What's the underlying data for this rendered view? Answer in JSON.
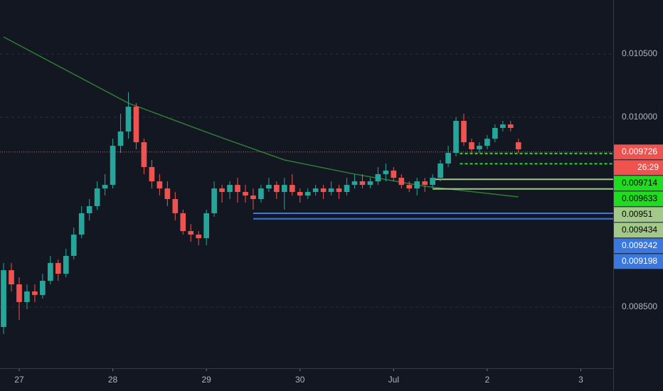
{
  "chart_data": {
    "type": "candlestick",
    "background": "#131722",
    "up_color": "#26a69a",
    "down_color": "#ef5350",
    "x": [
      -4,
      -2,
      0,
      2,
      4,
      6,
      8,
      10,
      12,
      14,
      16,
      18,
      20,
      22,
      24,
      26,
      28,
      30,
      32,
      34,
      36,
      38,
      40,
      42,
      44,
      46,
      48,
      50,
      52,
      54,
      56,
      58,
      60,
      62,
      64,
      66,
      68,
      70,
      72,
      74,
      76,
      78,
      80,
      82,
      84,
      86,
      88,
      90,
      92,
      94,
      96,
      98,
      100,
      102,
      104,
      106,
      108,
      110,
      112,
      114,
      116,
      118,
      120,
      122,
      124,
      126,
      128
    ],
    "open": [
      0.008343,
      0.008792,
      0.00868,
      0.00854,
      0.008624,
      0.008596,
      0.008708,
      0.008849,
      0.008764,
      0.008905,
      0.009073,
      0.009242,
      0.009298,
      0.009438,
      0.009466,
      0.009775,
      0.009888,
      0.010084,
      0.009803,
      0.009607,
      0.009494,
      0.009438,
      0.009354,
      0.009242,
      0.009101,
      0.009073,
      0.009045,
      0.009242,
      0.009438,
      0.00941,
      0.009466,
      0.00941,
      0.009382,
      0.009354,
      0.009438,
      0.009466,
      0.00941,
      0.009466,
      0.00941,
      0.009382,
      0.00941,
      0.009438,
      0.00941,
      0.009438,
      0.00941,
      0.009466,
      0.009494,
      0.009466,
      0.009494,
      0.009551,
      0.009579,
      0.009522,
      0.009466,
      0.009438,
      0.009494,
      0.009466,
      0.009522,
      0.009635,
      0.009719,
      0.009972,
      0.009803,
      0.009747,
      0.009775,
      0.009831,
      0.009916,
      0.009944,
      0.009803
    ],
    "high": [
      0.008849,
      0.008849,
      0.008736,
      0.00868,
      0.00868,
      0.008764,
      0.008905,
      0.008877,
      0.008961,
      0.009129,
      0.009298,
      0.009354,
      0.009494,
      0.009551,
      0.009831,
      0.010028,
      0.010197,
      0.010112,
      0.009831,
      0.009663,
      0.009551,
      0.009494,
      0.00941,
      0.00927,
      0.009157,
      0.009101,
      0.00927,
      0.009494,
      0.009466,
      0.009494,
      0.009522,
      0.009466,
      0.009438,
      0.009466,
      0.009522,
      0.009494,
      0.009522,
      0.009551,
      0.009438,
      0.009438,
      0.009466,
      0.009466,
      0.009494,
      0.009466,
      0.009522,
      0.009551,
      0.009551,
      0.009522,
      0.009607,
      0.009635,
      0.009607,
      0.009551,
      0.009494,
      0.009522,
      0.009522,
      0.009551,
      0.009663,
      0.009775,
      0.01,
      0.010028,
      0.009831,
      0.009803,
      0.00986,
      0.009944,
      0.009972,
      0.009972,
      0.009831
    ],
    "low": [
      0.008287,
      0.008624,
      0.008399,
      0.008484,
      0.00854,
      0.008568,
      0.00868,
      0.008708,
      0.008736,
      0.008877,
      0.009045,
      0.009185,
      0.00927,
      0.009382,
      0.009438,
      0.009719,
      0.009831,
      0.009747,
      0.009551,
      0.009438,
      0.009382,
      0.009298,
      0.009185,
      0.009073,
      0.009017,
      0.008989,
      0.008989,
      0.009214,
      0.009326,
      0.009354,
      0.009326,
      0.009326,
      0.00927,
      0.009326,
      0.00941,
      0.009354,
      0.00927,
      0.009382,
      0.009326,
      0.009354,
      0.009382,
      0.009354,
      0.009382,
      0.009354,
      0.009382,
      0.009438,
      0.009438,
      0.009438,
      0.009466,
      0.009494,
      0.009494,
      0.009438,
      0.00941,
      0.009382,
      0.00941,
      0.009438,
      0.009494,
      0.009607,
      0.009691,
      0.009775,
      0.009719,
      0.009719,
      0.009747,
      0.009803,
      0.009888,
      0.009888,
      0.009719
    ],
    "close": [
      0.008792,
      0.00868,
      0.00854,
      0.008624,
      0.008596,
      0.008708,
      0.008849,
      0.008764,
      0.008905,
      0.009073,
      0.009242,
      0.009298,
      0.009438,
      0.009466,
      0.009775,
      0.009888,
      0.010084,
      0.009803,
      0.009607,
      0.009494,
      0.009438,
      0.009354,
      0.009242,
      0.009101,
      0.009073,
      0.009045,
      0.009242,
      0.009438,
      0.00941,
      0.009466,
      0.00941,
      0.009382,
      0.009354,
      0.009438,
      0.009466,
      0.00941,
      0.009466,
      0.00941,
      0.009382,
      0.00941,
      0.009438,
      0.00941,
      0.009438,
      0.00941,
      0.009466,
      0.009494,
      0.009466,
      0.009494,
      0.009551,
      0.009579,
      0.009522,
      0.009466,
      0.009438,
      0.009494,
      0.009466,
      0.009522,
      0.009635,
      0.009719,
      0.009972,
      0.009803,
      0.009747,
      0.009775,
      0.009831,
      0.009916,
      0.009944,
      0.009916,
      0.009747
    ],
    "moving_average": {
      "color": "#2e7d32",
      "x": [
        -4,
        28,
        50,
        68,
        86,
        104,
        128
      ],
      "values": [
        0.010635,
        0.010112,
        0.00986,
        0.009663,
        0.009551,
        0.009455,
        0.009371
      ]
    },
    "xlim": [
      -4.92,
      152.3
    ],
    "xticks": [
      {
        "value": 0,
        "label": "27"
      },
      {
        "value": 24,
        "label": "28"
      },
      {
        "value": 48,
        "label": "29"
      },
      {
        "value": 72,
        "label": "30"
      },
      {
        "value": 96,
        "label": "Jul"
      },
      {
        "value": 120,
        "label": "2"
      },
      {
        "value": 144,
        "label": "3"
      }
    ],
    "ylim": [
      0.008017,
      0.010927
    ],
    "yticks": [
      {
        "value": 0.0105,
        "label": "0.010500"
      },
      {
        "value": 0.01,
        "label": "0.010000"
      },
      {
        "value": 0.0085,
        "label": "0.008500"
      }
    ],
    "grid": true,
    "last_price": {
      "value": 0.009726,
      "color": "#ef5350",
      "countdown": "26:29"
    },
    "levels": [
      {
        "value": 0.009714,
        "from": 113,
        "color": "#1fdc1f",
        "label_color": "#000000",
        "style": "dashed"
      },
      {
        "value": 0.009633,
        "from": 113,
        "color": "#1fdc1f",
        "label_color": "#000000",
        "style": "dashed"
      },
      {
        "value": 0.00951,
        "from": 106,
        "color": "#a3c98a",
        "label_color": "#000000",
        "style": "solid"
      },
      {
        "value": 0.009434,
        "from": 106,
        "color": "#a3c98a",
        "label_color": "#000000",
        "style": "solid"
      },
      {
        "value": 0.009242,
        "from": 60,
        "color": "#3a78e0",
        "label_color": "#ffffff",
        "style": "solid"
      },
      {
        "value": 0.009198,
        "from": 60,
        "color": "#3a78e0",
        "label_color": "#ffffff",
        "style": "solid"
      }
    ]
  }
}
